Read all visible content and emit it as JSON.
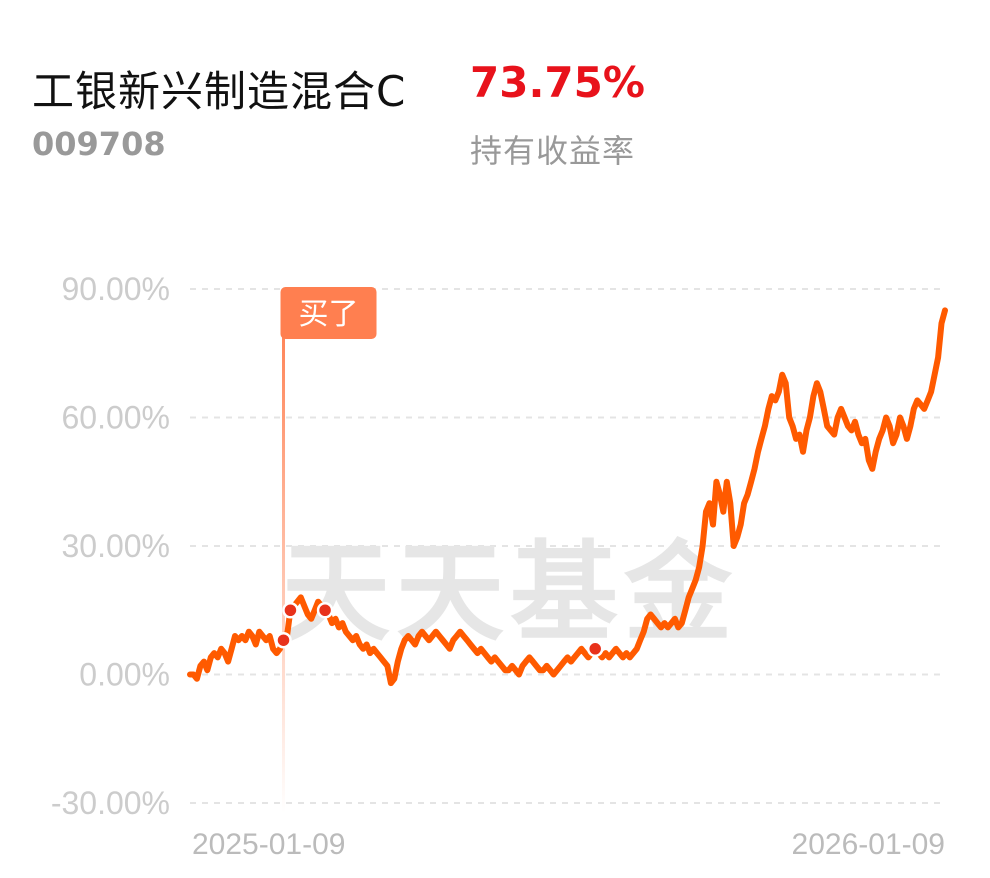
{
  "header": {
    "fund_name": "工银新兴制造混合C",
    "fund_code": "009708",
    "return_value": "73.75%",
    "return_label": "持有收益率"
  },
  "watermark": "天天基金",
  "buy_marker": {
    "label": "买了",
    "date_index": 27
  },
  "colors": {
    "line": "#ff5a00",
    "return": "#e8121b",
    "marker": "#e8321b",
    "buy_tag": "#ff7f50"
  },
  "chart_data": {
    "type": "line",
    "title": "",
    "xlabel": "",
    "ylabel": "",
    "x_tick_labels": [
      "2025-01-09",
      "2026-01-09"
    ],
    "y_tick_labels": [
      "90.00%",
      "60.00%",
      "30.00%",
      "0.00%",
      "-30.00%"
    ],
    "ylim": [
      -30,
      90
    ],
    "y_ticks": [
      90,
      60,
      30,
      0,
      -30
    ],
    "grid": true,
    "series": [
      {
        "values": [
          0,
          0,
          -1,
          2,
          3,
          1,
          4,
          5,
          4,
          6,
          5,
          3,
          6,
          9,
          8,
          9,
          8,
          10,
          9,
          7,
          10,
          9,
          8,
          9,
          6,
          5,
          6,
          8,
          9,
          15,
          16,
          17,
          18,
          16,
          14,
          13,
          15,
          17,
          16,
          15,
          14,
          12,
          13,
          11,
          12,
          10,
          9,
          8,
          9,
          7,
          6,
          7,
          5,
          6,
          5,
          4,
          3,
          2,
          -2,
          -1,
          3,
          6,
          8,
          9,
          8,
          7,
          9,
          10,
          9,
          8,
          9,
          10,
          9,
          8,
          7,
          6,
          8,
          9,
          10,
          9,
          8,
          7,
          6,
          5,
          6,
          5,
          4,
          3,
          4,
          3,
          2,
          1,
          1,
          2,
          1,
          0,
          2,
          3,
          4,
          3,
          2,
          1,
          1,
          2,
          1,
          0,
          1,
          2,
          3,
          4,
          3,
          4,
          5,
          6,
          5,
          4,
          5,
          6,
          5,
          4,
          5,
          4,
          5,
          6,
          5,
          4,
          5,
          4,
          5,
          6,
          8,
          10,
          13,
          14,
          13,
          12,
          11,
          12,
          11,
          12,
          13,
          11,
          12,
          15,
          18,
          20,
          22,
          25,
          30,
          38,
          40,
          35,
          45,
          42,
          38,
          45,
          40,
          30,
          32,
          35,
          40,
          42,
          45,
          48,
          52,
          55,
          58,
          62,
          65,
          64,
          66,
          70,
          68,
          60,
          58,
          55,
          56,
          52,
          57,
          60,
          65,
          68,
          66,
          62,
          58,
          57,
          56,
          60,
          62,
          60,
          58,
          57,
          59,
          56,
          54,
          55,
          50,
          48,
          52,
          55,
          57,
          60,
          58,
          54,
          56,
          60,
          58,
          55,
          58,
          62,
          64,
          63,
          62,
          64,
          66,
          70,
          74,
          82,
          85
        ]
      }
    ]
  }
}
